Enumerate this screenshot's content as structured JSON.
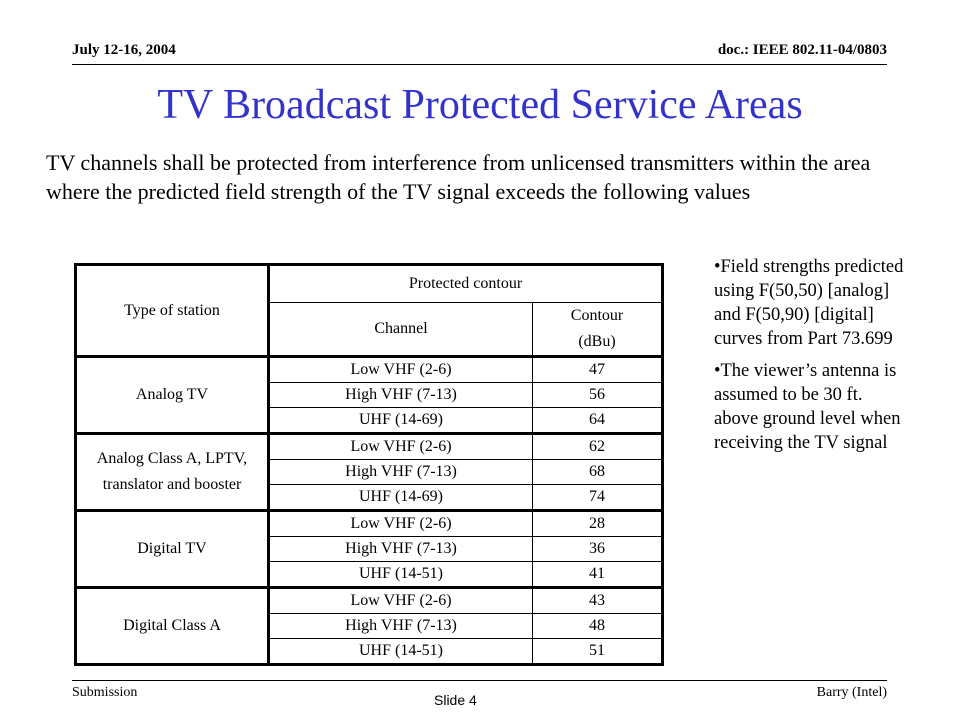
{
  "header": {
    "date": "July 12-16, 2004",
    "doc": "doc.: IEEE 802.11-04/0803"
  },
  "title": "TV Broadcast Protected Service Areas",
  "intro": "TV channels shall be protected from interference from unlicensed transmitters within the area where the predicted field strength of the TV signal exceeds the following values",
  "table": {
    "header_type": "Type of station",
    "header_group": "Protected contour",
    "header_channel": "Channel",
    "header_contour_1": "Contour",
    "header_contour_2": "(dBu)",
    "groups": [
      {
        "station": "Analog TV",
        "rows": [
          {
            "channel": "Low VHF (2-6)",
            "contour": "47"
          },
          {
            "channel": "High VHF (7-13)",
            "contour": "56"
          },
          {
            "channel": "UHF (14-69)",
            "contour": "64"
          }
        ]
      },
      {
        "station": "Analog Class A, LPTV, translator and booster",
        "rows": [
          {
            "channel": "Low VHF (2-6)",
            "contour": "62"
          },
          {
            "channel": "High VHF (7-13)",
            "contour": "68"
          },
          {
            "channel": "UHF (14-69)",
            "contour": "74"
          }
        ]
      },
      {
        "station": "Digital TV",
        "rows": [
          {
            "channel": "Low VHF (2-6)",
            "contour": "28"
          },
          {
            "channel": "High VHF (7-13)",
            "contour": "36"
          },
          {
            "channel": "UHF (14-51)",
            "contour": "41"
          }
        ]
      },
      {
        "station": "Digital Class A",
        "rows": [
          {
            "channel": "Low VHF (2-6)",
            "contour": "43"
          },
          {
            "channel": "High VHF (7-13)",
            "contour": "48"
          },
          {
            "channel": "UHF (14-51)",
            "contour": "51"
          }
        ]
      }
    ]
  },
  "notes": [
    "Field strengths predicted using F(50,50) [analog] and F(50,90) [digital] curves from Part 73.699",
    "The viewer’s antenna is assumed to be 30 ft. above ground level when receiving the TV signal"
  ],
  "footer": {
    "left": "Submission",
    "center": "Slide 4",
    "right": "Barry (Intel)"
  }
}
